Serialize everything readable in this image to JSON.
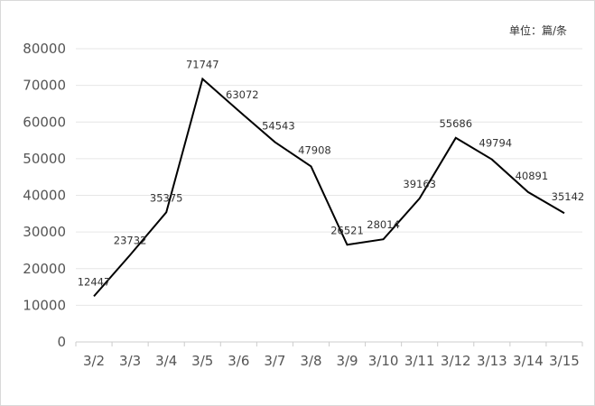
{
  "unit_label": "单位：篇/条",
  "chart_data": {
    "type": "line",
    "categories": [
      "3/2",
      "3/3",
      "3/4",
      "3/5",
      "3/6",
      "3/7",
      "3/8",
      "3/9",
      "3/10",
      "3/11",
      "3/12",
      "3/13",
      "3/14",
      "3/15"
    ],
    "series": [
      {
        "values": [
          12447,
          23732,
          35375,
          71747,
          63072,
          54543,
          47908,
          26521,
          28014,
          39163,
          55686,
          49794,
          40891,
          35142
        ]
      }
    ],
    "data_labels": [
      "12447",
      "23732",
      "35375",
      "71747",
      "63072",
      "54543",
      "47908",
      "26521",
      "28014",
      "39163",
      "55686",
      "49794",
      "40891",
      "35142"
    ],
    "y_ticks": [
      "0",
      "10000",
      "20000",
      "30000",
      "40000",
      "50000",
      "60000",
      "70000",
      "80000"
    ],
    "ylim": [
      0,
      80000
    ],
    "grid": true,
    "line_color": "#000000"
  }
}
